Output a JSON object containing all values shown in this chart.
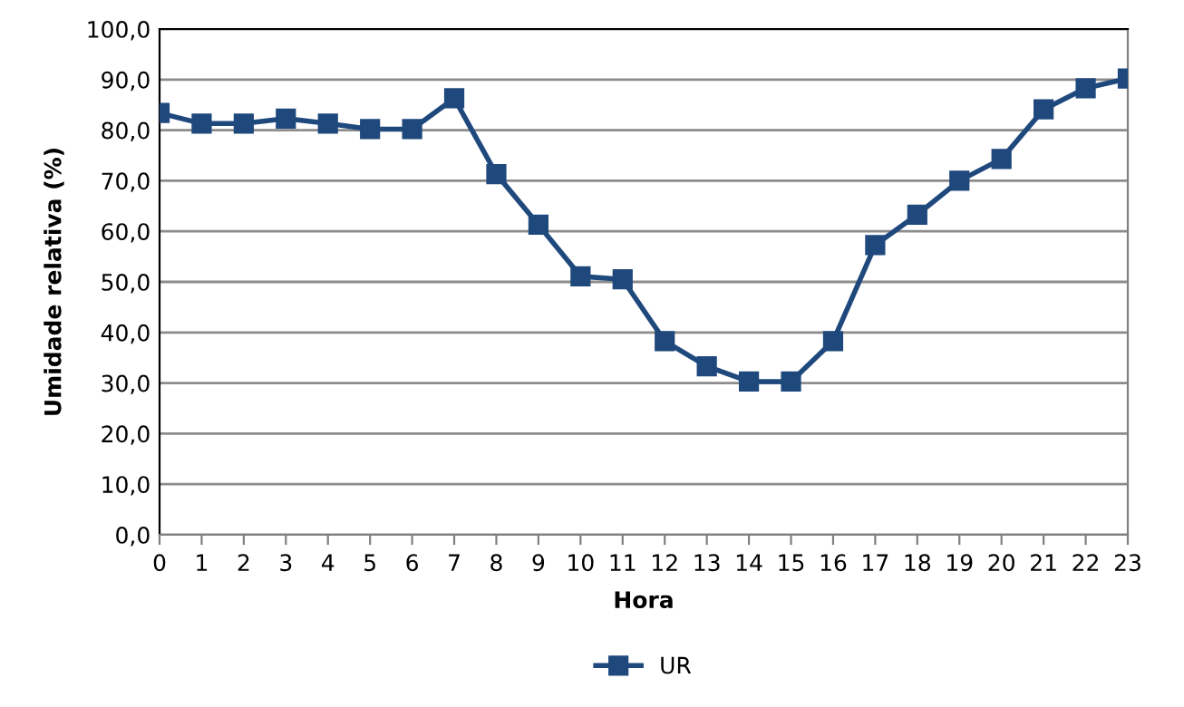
{
  "chart_data": {
    "type": "line",
    "xlabel": "Hora",
    "ylabel": "Umidade relativa (%)",
    "x": [
      0,
      1,
      2,
      3,
      4,
      5,
      6,
      7,
      8,
      9,
      10,
      11,
      12,
      13,
      14,
      15,
      16,
      17,
      18,
      19,
      20,
      21,
      22,
      23
    ],
    "series": [
      {
        "name": "UR",
        "color": "#1f497d",
        "values": [
          83.4,
          81.3,
          81.3,
          82.3,
          81.3,
          80.2,
          80.2,
          86.3,
          71.3,
          61.3,
          51.1,
          50.5,
          38.3,
          33.3,
          30.3,
          30.3,
          38.3,
          57.3,
          63.3,
          70.0,
          74.3,
          84.1,
          88.3,
          90.2
        ]
      }
    ],
    "xlim": [
      0,
      23
    ],
    "xticks": [
      0,
      1,
      2,
      3,
      4,
      5,
      6,
      7,
      8,
      9,
      10,
      11,
      12,
      13,
      14,
      15,
      16,
      17,
      18,
      19,
      20,
      21,
      22,
      23
    ],
    "ylim": [
      0,
      100
    ],
    "yticks": [
      {
        "value": 0,
        "label": "0,0"
      },
      {
        "value": 10,
        "label": "10,0"
      },
      {
        "value": 20,
        "label": "20,0"
      },
      {
        "value": 30,
        "label": "30,0"
      },
      {
        "value": 40,
        "label": "40,0"
      },
      {
        "value": 50,
        "label": "50,0"
      },
      {
        "value": 60,
        "label": "60,0"
      },
      {
        "value": 70,
        "label": "70,0"
      },
      {
        "value": 80,
        "label": "80,0"
      },
      {
        "value": 90,
        "label": "90,0"
      },
      {
        "value": 100,
        "label": "100,0"
      }
    ],
    "grid": "y",
    "legend": "bottom",
    "marker": "square",
    "line_style": "solid"
  }
}
